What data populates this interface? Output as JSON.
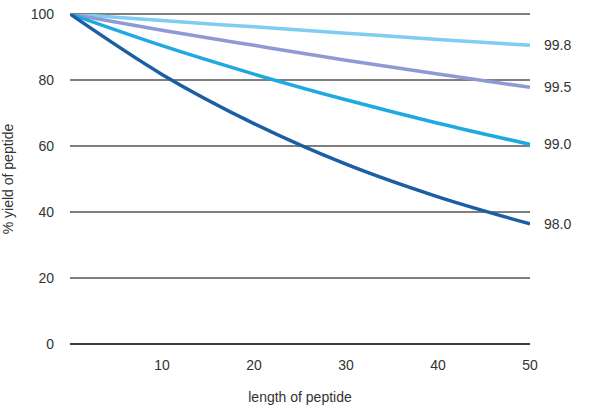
{
  "chart_data": {
    "type": "line",
    "xlabel": "length of peptide",
    "ylabel": "% yield of peptide",
    "x": [
      0,
      10,
      20,
      30,
      40,
      50
    ],
    "xlim": [
      0,
      50
    ],
    "xticks": [
      10,
      20,
      30,
      40,
      50
    ],
    "ylim": [
      0,
      100
    ],
    "yticks": [
      0,
      20,
      40,
      60,
      80,
      100
    ],
    "grid": true,
    "series": [
      {
        "name": "99.8",
        "color": "#7fcdf0",
        "values": [
          100,
          98.0,
          96.1,
          94.2,
          92.3,
          90.5
        ]
      },
      {
        "name": "99.5",
        "color": "#8e9ad4",
        "values": [
          100,
          95.1,
          90.5,
          86.0,
          81.8,
          77.8
        ]
      },
      {
        "name": "99.0",
        "color": "#1fa9e1",
        "values": [
          100,
          90.4,
          81.8,
          74.0,
          66.9,
          60.5
        ]
      },
      {
        "name": "98.0",
        "color": "#1b5ea3",
        "values": [
          100,
          81.7,
          66.8,
          54.5,
          44.6,
          36.4
        ]
      }
    ]
  }
}
